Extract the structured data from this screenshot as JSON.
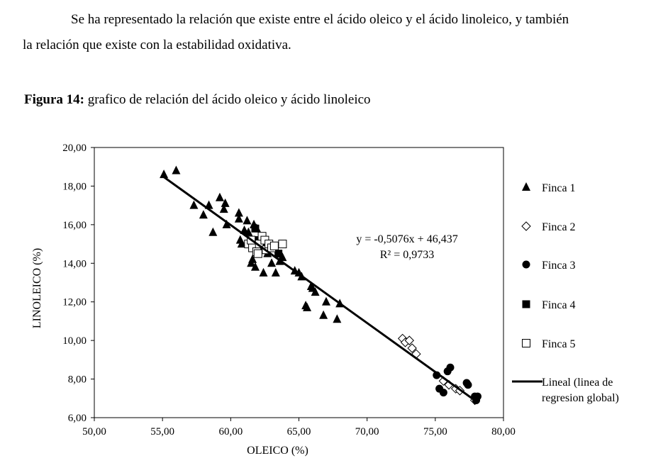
{
  "paragraph": {
    "line1": "Se ha representado la relación que existe entre el ácido oleico y el ácido linoleico, y también",
    "line2": "la relación que existe con la estabilidad oxidativa."
  },
  "figure": {
    "label": "Figura 14:",
    "title": "grafico de relación del ácido oleico y ácido linoleico"
  },
  "chart_data": {
    "type": "scatter",
    "xlabel": "OLEICO (%)",
    "ylabel": "LINOLEICO (%)",
    "xlim": [
      50,
      80
    ],
    "ylim": [
      6,
      20
    ],
    "xticks": [
      "50,00",
      "55,00",
      "60,00",
      "65,00",
      "70,00",
      "75,00",
      "80,00"
    ],
    "yticks": [
      "6,00",
      "8,00",
      "10,00",
      "12,00",
      "14,00",
      "16,00",
      "18,00",
      "20,00"
    ],
    "grid": false,
    "legend_position": "right",
    "regression": {
      "name": "Lineal (linea de regresion global)",
      "slope": -0.5076,
      "intercept": 46.437,
      "x_range": [
        55,
        78
      ],
      "equation": "y = -0,5076x + 46,437",
      "r2": "R² = 0,9733"
    },
    "series": [
      {
        "name": "Finca 1",
        "marker": "triangle",
        "points": [
          [
            55.1,
            18.6
          ],
          [
            56.0,
            18.8
          ],
          [
            57.3,
            17.0
          ],
          [
            58.0,
            16.5
          ],
          [
            58.4,
            17.0
          ],
          [
            58.7,
            15.6
          ],
          [
            59.2,
            17.4
          ],
          [
            59.5,
            16.8
          ],
          [
            59.6,
            17.1
          ],
          [
            59.7,
            16.0
          ],
          [
            60.6,
            16.6
          ],
          [
            60.6,
            16.3
          ],
          [
            60.7,
            15.2
          ],
          [
            60.8,
            15.0
          ],
          [
            61.0,
            15.7
          ],
          [
            61.2,
            16.2
          ],
          [
            61.3,
            15.6
          ],
          [
            61.5,
            14.0
          ],
          [
            61.6,
            14.2
          ],
          [
            61.7,
            16.0
          ],
          [
            61.8,
            13.8
          ],
          [
            61.9,
            15.8
          ],
          [
            62.4,
            13.5
          ],
          [
            62.7,
            14.5
          ],
          [
            63.0,
            14.0
          ],
          [
            63.3,
            13.5
          ],
          [
            63.6,
            14.1
          ],
          [
            63.8,
            14.3
          ],
          [
            64.7,
            13.6
          ],
          [
            65.0,
            13.5
          ],
          [
            65.2,
            13.3
          ],
          [
            65.5,
            11.8
          ],
          [
            65.6,
            11.7
          ],
          [
            65.9,
            12.8
          ],
          [
            66.0,
            12.7
          ],
          [
            66.2,
            12.5
          ],
          [
            66.8,
            11.3
          ],
          [
            67.0,
            12.0
          ],
          [
            67.8,
            11.1
          ],
          [
            68.0,
            11.9
          ]
        ]
      },
      {
        "name": "Finca 2",
        "marker": "diamond-open",
        "points": [
          [
            72.6,
            10.1
          ],
          [
            72.8,
            9.9
          ],
          [
            73.1,
            10.0
          ],
          [
            73.3,
            9.6
          ],
          [
            73.6,
            9.3
          ],
          [
            75.6,
            7.9
          ],
          [
            76.0,
            7.7
          ],
          [
            76.5,
            7.5
          ],
          [
            76.8,
            7.4
          ],
          [
            77.9,
            6.9
          ]
        ]
      },
      {
        "name": "Finca 3",
        "marker": "circle",
        "points": [
          [
            75.1,
            8.2
          ],
          [
            75.3,
            7.5
          ],
          [
            75.6,
            7.3
          ],
          [
            75.9,
            8.4
          ],
          [
            76.1,
            8.6
          ],
          [
            77.3,
            7.8
          ],
          [
            77.4,
            7.7
          ],
          [
            77.9,
            7.1
          ],
          [
            78.1,
            7.1
          ],
          [
            78.0,
            6.9
          ]
        ]
      },
      {
        "name": "Finca 4",
        "marker": "square",
        "points": [
          [
            61.8,
            15.8
          ],
          [
            62.0,
            15.2
          ],
          [
            62.5,
            14.8
          ],
          [
            63.5,
            14.5
          ]
        ]
      },
      {
        "name": "Finca 5",
        "marker": "square-open",
        "points": [
          [
            61.3,
            15.0
          ],
          [
            61.6,
            14.8
          ],
          [
            61.9,
            14.6
          ],
          [
            62.1,
            15.0
          ],
          [
            62.3,
            15.4
          ],
          [
            62.5,
            15.2
          ],
          [
            62.6,
            14.7
          ],
          [
            62.8,
            15.0
          ],
          [
            63.0,
            14.8
          ],
          [
            63.2,
            14.9
          ],
          [
            63.8,
            15.0
          ],
          [
            61.5,
            15.2
          ],
          [
            62.0,
            14.5
          ]
        ]
      }
    ]
  }
}
